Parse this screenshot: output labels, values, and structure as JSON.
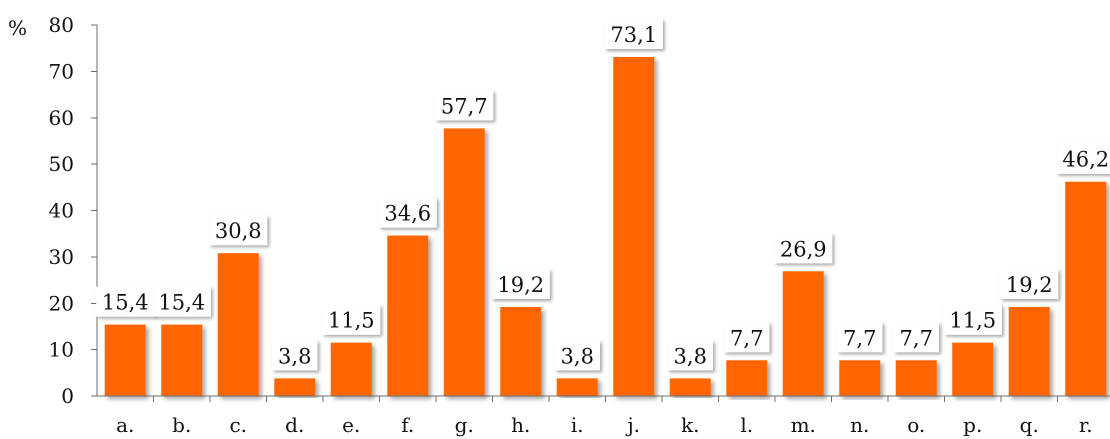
{
  "chart_data": {
    "type": "bar",
    "title": "",
    "xlabel": "",
    "ylabel": "",
    "y_unit_label": "%",
    "ylim": [
      0,
      80
    ],
    "yticks": [
      0,
      10,
      20,
      30,
      40,
      50,
      60,
      70,
      80
    ],
    "grid": false,
    "legend": "none",
    "categories": [
      "a.",
      "b.",
      "c.",
      "d.",
      "e.",
      "f.",
      "g.",
      "h.",
      "i.",
      "j.",
      "k.",
      "l.",
      "m.",
      "n.",
      "o.",
      "p.",
      "q.",
      "r."
    ],
    "values": [
      15.4,
      15.4,
      30.8,
      3.8,
      11.5,
      34.6,
      57.7,
      19.2,
      3.8,
      73.1,
      3.8,
      7.7,
      26.9,
      7.7,
      7.7,
      11.5,
      19.2,
      46.2
    ],
    "data_labels": [
      "15,4",
      "15,4",
      "30,8",
      "3,8",
      "11,5",
      "34,6",
      "57,7",
      "19,2",
      "3,8",
      "73,1",
      "3,8",
      "7,7",
      "26,9",
      "7,7",
      "7,7",
      "11,5",
      "19,2",
      "46,2"
    ],
    "bar_color": "#ff6600"
  }
}
